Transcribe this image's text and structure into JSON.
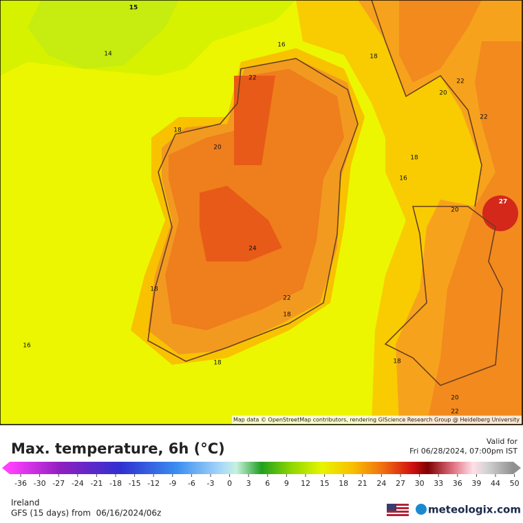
{
  "map": {
    "contour_labels": [
      15,
      14,
      16,
      22,
      18,
      20,
      22,
      22,
      18,
      20,
      18,
      16,
      20,
      27,
      24,
      18,
      22,
      18,
      16,
      18,
      18,
      20,
      22
    ],
    "attribution": "Map data © OpenStreetMap contributors, rendering GIScience Research Group @ Heidelberg University"
  },
  "header": {
    "title": "Max. temperature, 6h (°C)",
    "valid_label": "Valid for",
    "valid_time": "Fri 06/28/2024, 07:00pm IST"
  },
  "colorbar": {
    "ticks": [
      -36,
      -30,
      -27,
      -24,
      -21,
      -18,
      -15,
      -12,
      -9,
      -6,
      -3,
      0,
      3,
      6,
      9,
      12,
      15,
      18,
      21,
      24,
      27,
      30,
      33,
      36,
      39,
      44,
      50
    ]
  },
  "footer": {
    "region": "Ireland",
    "model_run": "GFS (15 days) from  06/16/2024/06z",
    "brand": "meteologix.com"
  }
}
